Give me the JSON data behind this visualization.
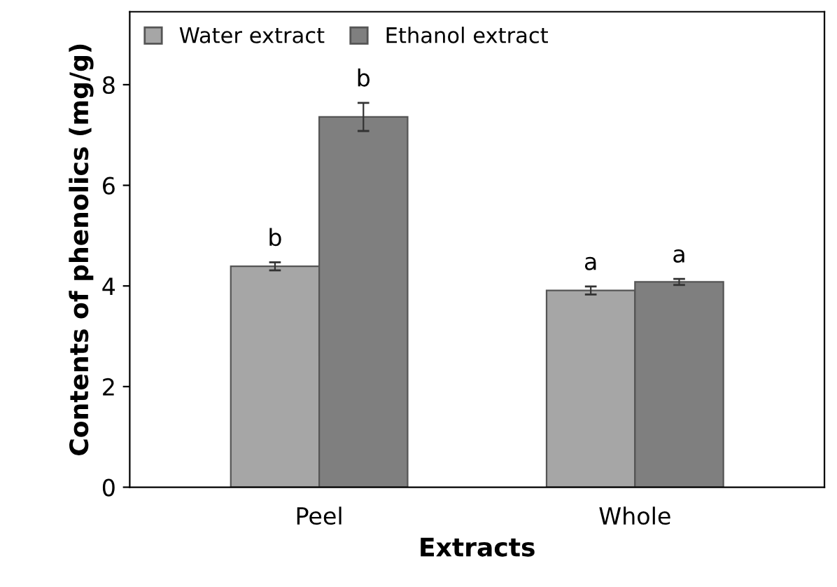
{
  "chart_data": {
    "type": "bar",
    "xlabel": "Extracts",
    "ylabel": "Contents of phenolics (mg/g)",
    "categories": [
      "Peel",
      "Whole"
    ],
    "series": [
      {
        "name": "Water extract",
        "color": "#a6a6a6",
        "values": [
          4.39,
          3.91
        ],
        "errors": [
          0.08,
          0.08
        ]
      },
      {
        "name": "Ethanol extract",
        "color": "#7f7f7f",
        "values": [
          7.36,
          4.08
        ],
        "errors": [
          0.28,
          0.06
        ]
      }
    ],
    "annotations": [
      "b",
      "a",
      "b",
      "a"
    ],
    "ylim": [
      0,
      9.45
    ],
    "yticks": [
      0,
      2,
      4,
      6,
      8
    ],
    "grid": false,
    "legend": "top left"
  }
}
